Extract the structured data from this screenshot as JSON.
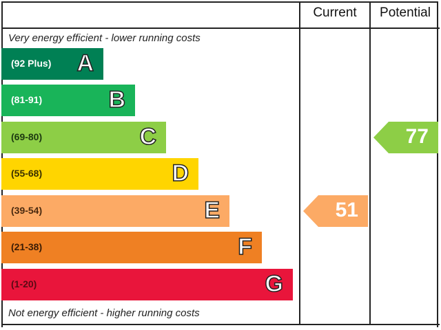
{
  "chart_data": {
    "type": "bar",
    "headers": {
      "current": "Current",
      "potential": "Potential"
    },
    "top_note": "Very energy efficient - lower running costs",
    "bottom_note": "Not energy efficient - higher running costs",
    "bands": [
      {
        "letter": "A",
        "range": "(92 Plus)",
        "color": "#008054",
        "text_color": "#ffffff"
      },
      {
        "letter": "B",
        "range": "(81-91)",
        "color": "#19b459",
        "text_color": "#ffffff"
      },
      {
        "letter": "C",
        "range": "(69-80)",
        "color": "#8dce46",
        "text_color": "#1c3a10"
      },
      {
        "letter": "D",
        "range": "(55-68)",
        "color": "#ffd500",
        "text_color": "#3a3000"
      },
      {
        "letter": "E",
        "range": "(39-54)",
        "color": "#fcaa65",
        "text_color": "#4a2a10"
      },
      {
        "letter": "F",
        "range": "(21-38)",
        "color": "#ef8023",
        "text_color": "#3a1c05"
      },
      {
        "letter": "G",
        "range": "(1-20)",
        "color": "#e9153b",
        "text_color": "#5a0a14"
      }
    ],
    "current": {
      "value": "51",
      "band": "E",
      "color": "#fcaa65"
    },
    "potential": {
      "value": "77",
      "band": "C",
      "color": "#8dce46"
    }
  }
}
